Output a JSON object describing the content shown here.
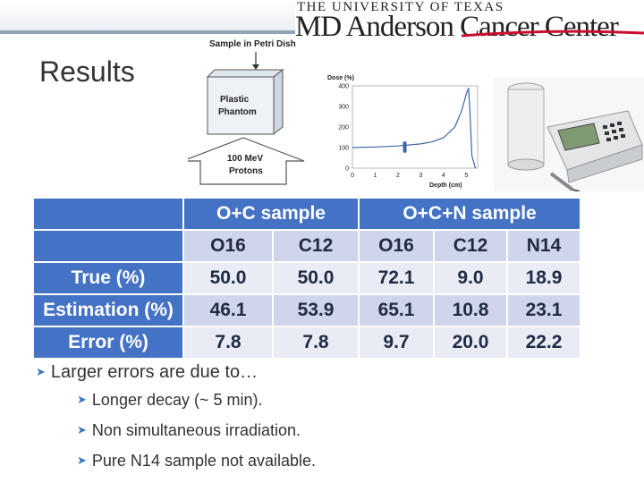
{
  "header": {
    "university": "THE UNIVERSITY OF TEXAS",
    "institution": "MD Anderson Cancer Center"
  },
  "slide": {
    "title": "Results"
  },
  "diagram": {
    "sample_label": "Sample in Petri Dish",
    "phantom_label_1": "Plastic",
    "phantom_label_2": "Phantom",
    "beam_label_1": "100 MeV",
    "beam_label_2": "Protons"
  },
  "chart_data": {
    "type": "line",
    "title": "",
    "ylabel": "Dose (%)",
    "xlabel": "Depth (cm)",
    "x_ticks": [
      "0",
      "1",
      "2",
      "3",
      "4",
      "5"
    ],
    "y_ticks": [
      "0",
      "100",
      "200",
      "300",
      "400"
    ],
    "xlim": [
      0,
      5.5
    ],
    "ylim": [
      0,
      400
    ],
    "series": [
      {
        "x": [
          0,
          1,
          2,
          3,
          3.5,
          4,
          4.5,
          4.8,
          5.0,
          5.1,
          5.15,
          5.25,
          5.4
        ],
        "y": [
          100,
          103,
          108,
          118,
          128,
          148,
          200,
          280,
          360,
          390,
          300,
          60,
          0
        ]
      }
    ]
  },
  "table": {
    "groups": [
      "O+C sample",
      "O+C+N sample"
    ],
    "columns": [
      "O16",
      "C12",
      "O16",
      "C12",
      "N14"
    ],
    "rows": [
      {
        "label": "True (%)",
        "values": [
          "50.0",
          "50.0",
          "72.1",
          "9.0",
          "18.9"
        ]
      },
      {
        "label": "Estimation (%)",
        "values": [
          "46.1",
          "53.9",
          "65.1",
          "10.8",
          "23.1"
        ]
      },
      {
        "label": "Error (%)",
        "values": [
          "7.8",
          "7.8",
          "9.7",
          "20.0",
          "22.2"
        ]
      }
    ]
  },
  "bullets": {
    "main": "Larger errors are due to…",
    "sub": [
      "Longer decay (~ 5 min).",
      "Non simultaneous irradiation.",
      "Pure N14 sample not available."
    ]
  },
  "colors": {
    "table_header": "#4472c4",
    "row_odd": "#cfd5ea",
    "row_even": "#e9ebf5",
    "bullet_arrow": "#3d7ab8",
    "logo_swoosh": "#c8102e"
  }
}
